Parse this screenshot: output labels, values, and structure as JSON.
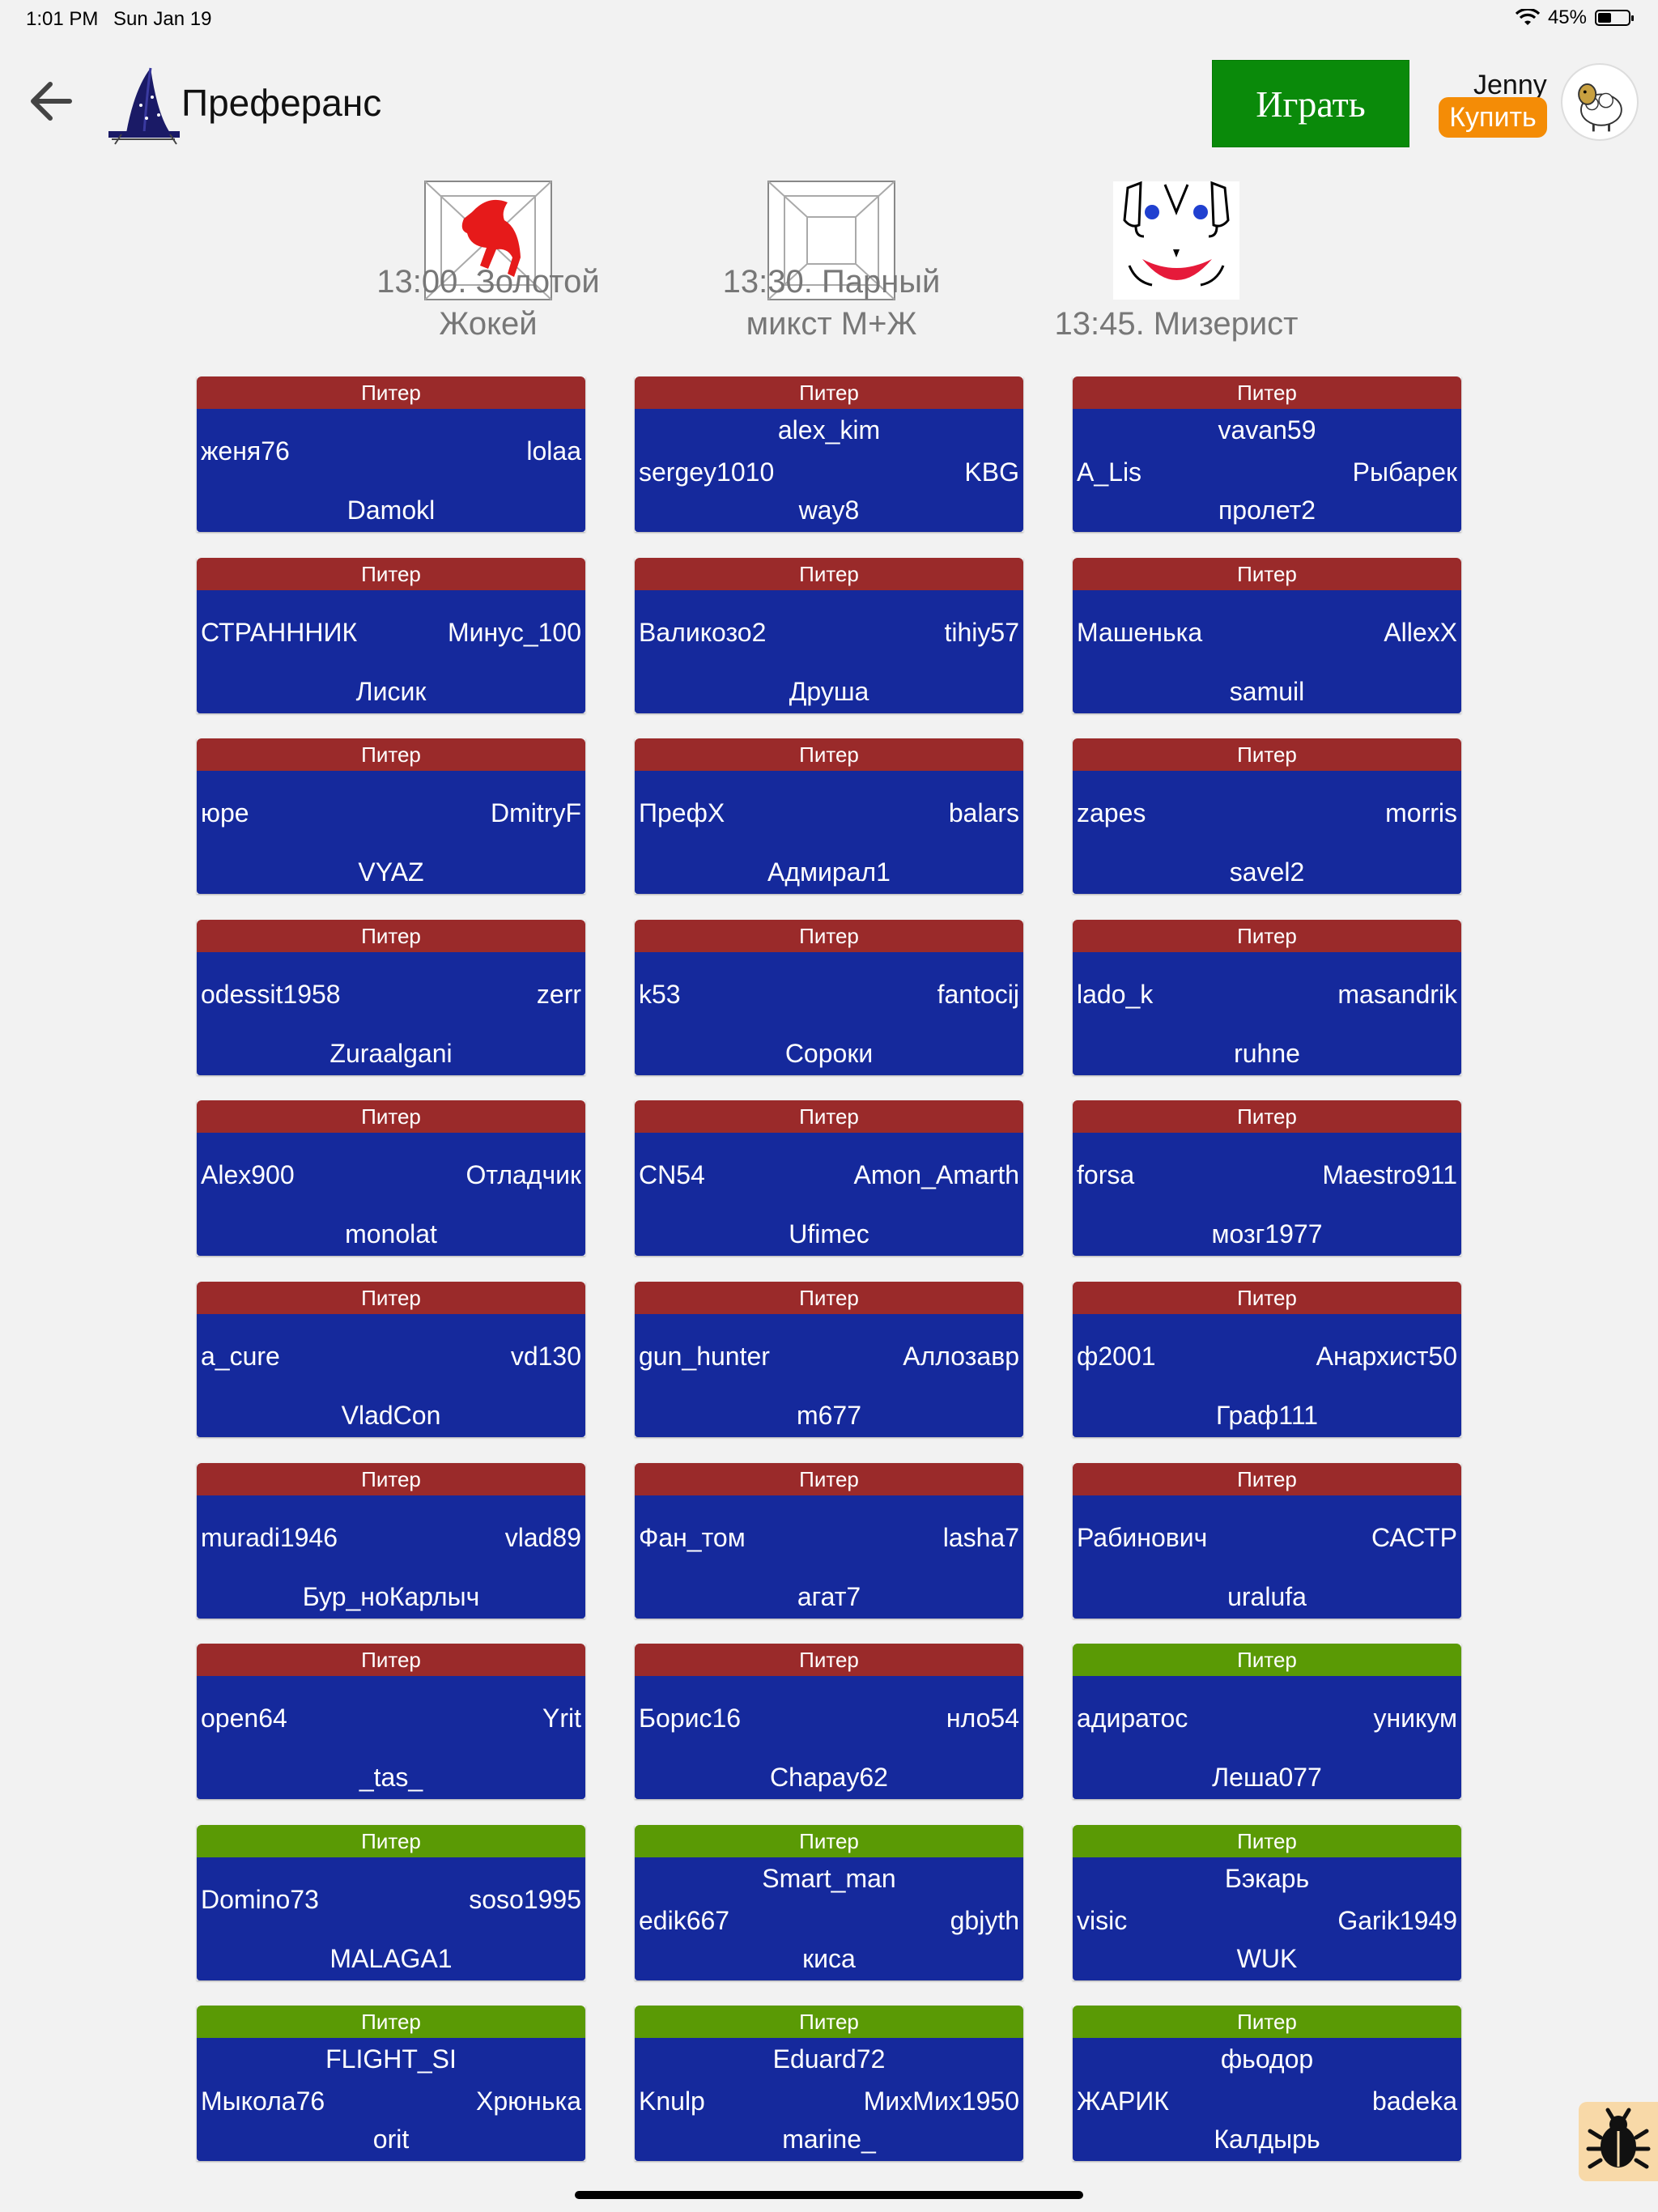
{
  "status_bar": {
    "time": "1:01 PM",
    "date": "Sun Jan 19",
    "battery": "45%"
  },
  "header": {
    "title": "Преферанс",
    "play_label": "Играть",
    "user_name": "Jenny",
    "buy_label": "Купить"
  },
  "tournaments": [
    {
      "line1": "13:00. Золотой",
      "line2": "Жокей",
      "icon": "red-horse-icon"
    },
    {
      "line1": "13:30. Парный",
      "line2": "микст М+Ж",
      "icon": "pyramid-icon"
    },
    {
      "line1": "13:45. Мизерист",
      "line2": "",
      "icon": "clown-face-icon"
    }
  ],
  "tables": [
    {
      "region": "Питер",
      "status": "red",
      "top": "",
      "left": "женя76",
      "right": "lolaa",
      "bottom": "Damokl"
    },
    {
      "region": "Питер",
      "status": "red",
      "top": "alex_kim",
      "left": "sergey1010",
      "right": "KBG",
      "bottom": "way8"
    },
    {
      "region": "Питер",
      "status": "red",
      "top": "vavan59",
      "left": "A_Lis",
      "right": "Рыбарек",
      "bottom": "пролет2"
    },
    {
      "region": "Питер",
      "status": "red",
      "top": "",
      "left": "СТРАНННИК",
      "right": "Минус_100",
      "bottom": "Лисик"
    },
    {
      "region": "Питер",
      "status": "red",
      "top": "",
      "left": "Валикозо2",
      "right": "tihiy57",
      "bottom": "Друша"
    },
    {
      "region": "Питер",
      "status": "red",
      "top": "",
      "left": "Машенька",
      "right": "AllexX",
      "bottom": "samuil"
    },
    {
      "region": "Питер",
      "status": "red",
      "top": "",
      "left": "юре",
      "right": "DmitryF",
      "bottom": "VYAZ"
    },
    {
      "region": "Питер",
      "status": "red",
      "top": "",
      "left": "ПрефХ",
      "right": "balars",
      "bottom": "Адмирал1"
    },
    {
      "region": "Питер",
      "status": "red",
      "top": "",
      "left": "zapes",
      "right": "morris",
      "bottom": "savel2"
    },
    {
      "region": "Питер",
      "status": "red",
      "top": "",
      "left": "odessit1958",
      "right": "zerr",
      "bottom": "Zuraalgani"
    },
    {
      "region": "Питер",
      "status": "red",
      "top": "",
      "left": "k53",
      "right": "fantocij",
      "bottom": "Сороки"
    },
    {
      "region": "Питер",
      "status": "red",
      "top": "",
      "left": "lado_k",
      "right": "masandrik",
      "bottom": "ruhne"
    },
    {
      "region": "Питер",
      "status": "red",
      "top": "",
      "left": "Alex900",
      "right": "Отладчик",
      "bottom": "monolat"
    },
    {
      "region": "Питер",
      "status": "red",
      "top": "",
      "left": "CN54",
      "right": "Amon_Amarth",
      "bottom": "Ufimec"
    },
    {
      "region": "Питер",
      "status": "red",
      "top": "",
      "left": "forsa",
      "right": "Maestro911",
      "bottom": "мозг1977"
    },
    {
      "region": "Питер",
      "status": "red",
      "top": "",
      "left": "a_cure",
      "right": "vd130",
      "bottom": "VladCon"
    },
    {
      "region": "Питер",
      "status": "red",
      "top": "",
      "left": "gun_hunter",
      "right": "Аллозавр",
      "bottom": "m677"
    },
    {
      "region": "Питер",
      "status": "red",
      "top": "",
      "left": "ф2001",
      "right": "Анархист50",
      "bottom": "Граф111"
    },
    {
      "region": "Питер",
      "status": "red",
      "top": "",
      "left": "muradi1946",
      "right": "vlad89",
      "bottom": "Бур_ноКарлыч"
    },
    {
      "region": "Питер",
      "status": "red",
      "top": "",
      "left": "Фан_том",
      "right": "lasha7",
      "bottom": "агат7"
    },
    {
      "region": "Питер",
      "status": "red",
      "top": "",
      "left": "Рабинович",
      "right": "САСТР",
      "bottom": "uralufa"
    },
    {
      "region": "Питер",
      "status": "red",
      "top": "",
      "left": "open64",
      "right": "Yrit",
      "bottom": "_tas_"
    },
    {
      "region": "Питер",
      "status": "red",
      "top": "",
      "left": "Борис16",
      "right": "нло54",
      "bottom": "Chapay62"
    },
    {
      "region": "Питер",
      "status": "green",
      "top": "",
      "left": "адиратос",
      "right": "уникум",
      "bottom": "Леша077"
    },
    {
      "region": "Питер",
      "status": "green",
      "top": "",
      "left": "Domino73",
      "right": "soso1995",
      "bottom": "MALAGA1"
    },
    {
      "region": "Питер",
      "status": "green",
      "top": "Smart_man",
      "left": "edik667",
      "right": "gbjyth",
      "bottom": "киса"
    },
    {
      "region": "Питер",
      "status": "green",
      "top": "Бэкарь",
      "left": "visic",
      "right": "Garik1949",
      "bottom": "WUK"
    },
    {
      "region": "Питер",
      "status": "green",
      "top": "FLIGHT_SI",
      "left": "Мыкола76",
      "right": "Хрюнька",
      "bottom": "orit"
    },
    {
      "region": "Питер",
      "status": "green",
      "top": "Eduard72",
      "left": "Knulp",
      "right": "МихМих1950",
      "bottom": "marine_"
    },
    {
      "region": "Питер",
      "status": "green",
      "top": "фьодор",
      "left": "ЖАРИК",
      "right": "badeka",
      "bottom": "Калдырь"
    }
  ],
  "colors": {
    "red_header": "#9a2a2a",
    "green_header": "#5a9a05",
    "table_body": "#15299c",
    "play_button": "#0a8a0a",
    "buy_button": "#f48c06"
  }
}
